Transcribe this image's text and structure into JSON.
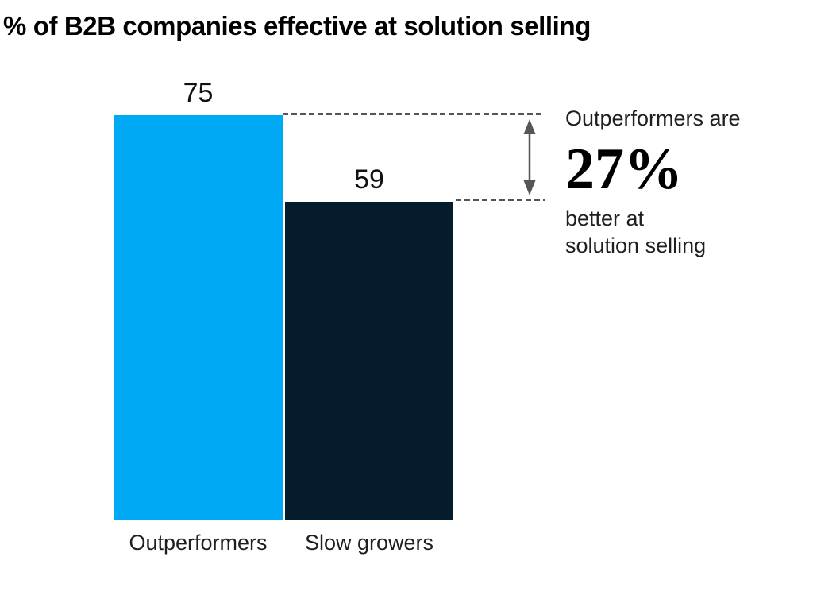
{
  "chart_data": {
    "type": "bar",
    "title": "% of B2B companies effective at solution selling",
    "categories": [
      "Outperformers",
      "Slow growers"
    ],
    "values": [
      75,
      59
    ],
    "value_labels": [
      "75",
      "59"
    ],
    "series_colors": [
      "#00A9F4",
      "#051C2C"
    ],
    "ylim": [
      0,
      75
    ],
    "grid": false,
    "legend": false,
    "annotation": {
      "line1": "Outperformers are",
      "highlight": "27%",
      "line2": "better at",
      "line3": "solution selling"
    }
  },
  "colors": {
    "bar_outperformers": "#00A9F4",
    "bar_slow_growers": "#051C2C",
    "dashed_line": "#54565A",
    "arrow": "#54565A",
    "title_text": "#000000",
    "label_text": "#1F1F1F"
  }
}
